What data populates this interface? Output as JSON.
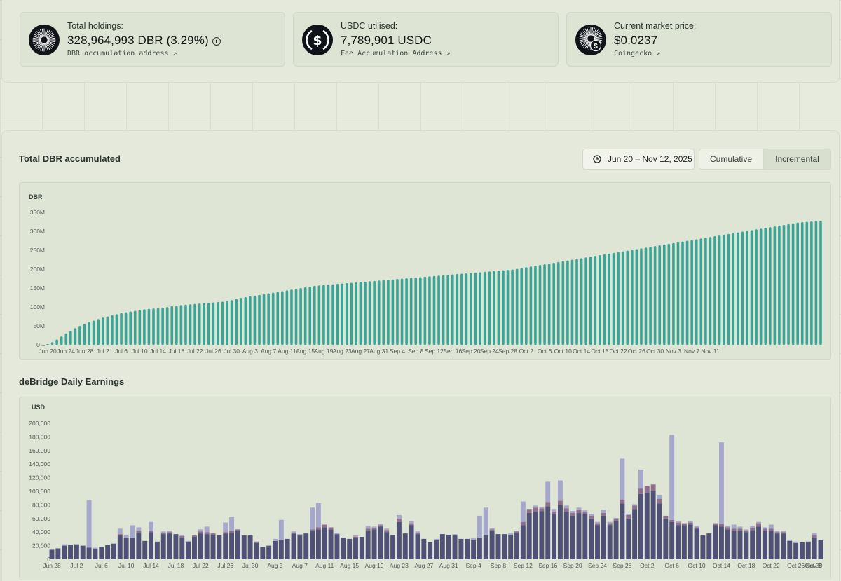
{
  "stats": [
    {
      "label": "Total holdings:",
      "value": "328,964,993 DBR (3.29%)",
      "link": "DBR accumulation address",
      "icon": "dbr-logo-icon",
      "has_info": true
    },
    {
      "label": "USDC utilised:",
      "value": "7,789,901 USDC",
      "link": "Fee Accumulation Address",
      "icon": "usdc-icon",
      "has_info": false
    },
    {
      "label": "Current market price:",
      "value": "$0.0237",
      "link": "Coingecko",
      "icon": "dbr-price-icon",
      "has_info": false
    }
  ],
  "link_arrow": "↗",
  "info_glyph": "i",
  "dbr_section": {
    "title": "Total DBR accumulated",
    "date_range": "Jun 20 – Nov 12, 2025",
    "toggle": [
      "Cumulative",
      "Incremental"
    ],
    "active_toggle": "Cumulative"
  },
  "earnings_section": {
    "title": "deBridge Daily Earnings"
  },
  "colors": {
    "teal": "#3aa597",
    "bar_main": "#4f5276",
    "bar_top": "#a5a7cc",
    "bar_mid": "#8f6e8c"
  },
  "chart_data": [
    {
      "type": "bar",
      "title": "",
      "ylabel": "DBR",
      "ylim": [
        0,
        350000000
      ],
      "y_ticks": [
        "0",
        "50M",
        "100M",
        "150M",
        "200M",
        "250M",
        "300M",
        "350M"
      ],
      "x_ticks": [
        "Jun 20",
        "Jun 24",
        "Jun 28",
        "Jul 2",
        "Jul 6",
        "Jul 10",
        "Jul 14",
        "Jul 18",
        "Jul 22",
        "Jul 26",
        "Jul 30",
        "Aug 3",
        "Aug 7",
        "Aug 11",
        "Aug 15",
        "Aug 19",
        "Aug 23",
        "Aug 27",
        "Aug 31",
        "Sep 4",
        "Sep 8",
        "Sep 12",
        "Sep 16",
        "Sep 20",
        "Sep 24",
        "Sep 28",
        "Oct 2",
        "Oct 6",
        "Oct 10",
        "Oct 14",
        "Oct 18",
        "Oct 22",
        "Oct 26",
        "Oct 30",
        "Nov 3",
        "Nov 7",
        "Nov 11"
      ],
      "x_start": "2025-06-20",
      "values": [
        2,
        7,
        14,
        22,
        30,
        37,
        44,
        50,
        55,
        60,
        64,
        68,
        72,
        75,
        78,
        81,
        84,
        86,
        88,
        90,
        92,
        94,
        95,
        96,
        97,
        98,
        100,
        102,
        103,
        105,
        106,
        107,
        108,
        109,
        110,
        111,
        112,
        113,
        114,
        116,
        118,
        121,
        124,
        126,
        128,
        130,
        132,
        134,
        136,
        138,
        140,
        142,
        144,
        146,
        148,
        150,
        152,
        154,
        156,
        157,
        158,
        159,
        160,
        161,
        162,
        163,
        164,
        165,
        166,
        167,
        168,
        169,
        170,
        171,
        172,
        173,
        174,
        175,
        176,
        177,
        178,
        179,
        180,
        181,
        182,
        183,
        184,
        185,
        186,
        187,
        188,
        189,
        190,
        191,
        192,
        193,
        194,
        195,
        196,
        197,
        198,
        199,
        201,
        203,
        205,
        207,
        209,
        211,
        213,
        215,
        217,
        219,
        221,
        223,
        225,
        227,
        229,
        231,
        233,
        235,
        237,
        239,
        241,
        243,
        245,
        247,
        249,
        251,
        253,
        255,
        257,
        259,
        261,
        263,
        265,
        267,
        269,
        271,
        273,
        275,
        277,
        279,
        281,
        283,
        285,
        287,
        289,
        291,
        293,
        295,
        297,
        299,
        301,
        303,
        305,
        307,
        309,
        311,
        313,
        315,
        317,
        319,
        321,
        323,
        324,
        325,
        326,
        327,
        328
      ],
      "value_unit": "millions DBR"
    },
    {
      "type": "bar",
      "title": "",
      "ylabel": "USD",
      "ylim": [
        0,
        200000
      ],
      "y_ticks": [
        "0",
        "20,000",
        "40,000",
        "60,000",
        "80,000",
        "100,000",
        "120,000",
        "140,000",
        "160,000",
        "180,000",
        "200,000"
      ],
      "x_ticks": [
        "Jun 28",
        "Jul 2",
        "Jul 6",
        "Jul 10",
        "Jul 14",
        "Jul 18",
        "Jul 22",
        "Jul 26",
        "Jul 30",
        "Aug 3",
        "Aug 7",
        "Aug 11",
        "Aug 15",
        "Aug 19",
        "Aug 23",
        "Aug 27",
        "Aug 31",
        "Sep 4",
        "Sep 8",
        "Sep 12",
        "Sep 16",
        "Sep 20",
        "Sep 24",
        "Sep 28",
        "Oct 2",
        "Oct 6",
        "Oct 10",
        "Oct 14",
        "Oct 18",
        "Oct 22",
        "Oct 26",
        "Oct 30",
        "Nov 3"
      ],
      "x_start": "2025-06-28",
      "series_main": [
        14000,
        16000,
        20000,
        21000,
        22000,
        20000,
        17000,
        15000,
        18000,
        21000,
        23000,
        35000,
        32000,
        32000,
        39000,
        27000,
        40000,
        26000,
        37000,
        38000,
        37000,
        32000,
        25000,
        33000,
        38000,
        37000,
        36000,
        35000,
        38000,
        39000,
        42000,
        35000,
        35000,
        24000,
        18000,
        20000,
        27000,
        28000,
        30000,
        38000,
        35000,
        38000,
        42000,
        44000,
        47000,
        44000,
        37000,
        32000,
        30000,
        31000,
        33000,
        42000,
        44000,
        48000,
        40000,
        36000,
        55000,
        38000,
        50000,
        37000,
        30000,
        25000,
        28000,
        37000,
        36000,
        35000,
        30000,
        30000,
        28000,
        32000,
        36000,
        42000,
        37000,
        37000,
        36000,
        39000,
        50000,
        68000,
        70000,
        71000,
        78000,
        66000,
        80000,
        70000,
        64000,
        68000,
        66000,
        60000,
        50000,
        64000,
        50000,
        56000,
        82000,
        60000,
        74000,
        96000,
        98000,
        100000,
        82000,
        60000,
        55000,
        50000,
        50000,
        51000,
        45000,
        35000,
        38000,
        50000,
        48000,
        44000,
        42000,
        42000,
        40000,
        43000,
        48000,
        42000,
        42000,
        38000,
        38000,
        27000,
        24000,
        25000,
        26000,
        32000,
        28000
      ],
      "series_mid": [
        0,
        0,
        0,
        0,
        0,
        0,
        0,
        0,
        0,
        0,
        0,
        2000,
        0,
        0,
        3000,
        0,
        2000,
        0,
        2000,
        2000,
        0,
        2000,
        0,
        2000,
        3000,
        3000,
        2000,
        0,
        2000,
        3000,
        2000,
        0,
        0,
        2000,
        0,
        0,
        0,
        0,
        0,
        0,
        0,
        0,
        2000,
        3000,
        4000,
        3000,
        0,
        0,
        0,
        2000,
        0,
        3000,
        2000,
        2000,
        3000,
        0,
        5000,
        0,
        3000,
        2000,
        0,
        0,
        0,
        0,
        0,
        0,
        0,
        0,
        0,
        0,
        0,
        2000,
        0,
        0,
        0,
        2000,
        5000,
        6000,
        6000,
        4000,
        6000,
        4000,
        6000,
        5000,
        4000,
        5000,
        3000,
        4000,
        3000,
        4000,
        3000,
        3000,
        6000,
        5000,
        5000,
        8000,
        10000,
        10000,
        7000,
        4000,
        3000,
        4000,
        3000,
        3000,
        2000,
        0,
        0,
        3000,
        4000,
        3000,
        3000,
        3000,
        2000,
        3000,
        5000,
        3000,
        3000,
        2000,
        2000,
        0,
        0,
        0,
        0,
        3000,
        0
      ],
      "series_top": [
        0,
        0,
        2000,
        0,
        0,
        0,
        70000,
        2000,
        0,
        0,
        0,
        8000,
        4000,
        18000,
        5000,
        0,
        13000,
        0,
        2000,
        2000,
        0,
        2000,
        2000,
        0,
        3000,
        8000,
        0,
        0,
        14000,
        20000,
        0,
        0,
        0,
        0,
        0,
        0,
        3000,
        30000,
        0,
        3000,
        2000,
        0,
        32000,
        36000,
        0,
        0,
        2000,
        0,
        0,
        2000,
        0,
        4000,
        2000,
        2000,
        2000,
        0,
        5000,
        0,
        3000,
        2000,
        0,
        0,
        2000,
        0,
        0,
        2000,
        0,
        0,
        3000,
        32000,
        40000,
        2000,
        0,
        0,
        2000,
        0,
        30000,
        0,
        3000,
        2000,
        30000,
        4000,
        30000,
        4000,
        3000,
        3000,
        3000,
        3000,
        2000,
        5000,
        2000,
        2000,
        60000,
        2000,
        2000,
        28000,
        0,
        0,
        5000,
        0,
        125000,
        2000,
        0,
        2000,
        2000,
        0,
        0,
        0,
        120000,
        2000,
        6000,
        3000,
        2000,
        3000,
        2000,
        2000,
        6000,
        2000,
        2000,
        2000,
        2000,
        0,
        0,
        3000,
        0,
        30000,
        0
      ]
    }
  ]
}
